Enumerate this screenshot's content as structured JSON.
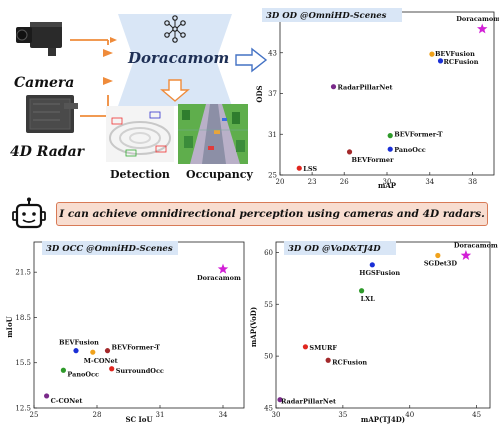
{
  "pipeline": {
    "inputs": [
      "Camera",
      "4D Radar"
    ],
    "model_name": "Doracamom",
    "outputs": [
      "Detection",
      "Occupancy"
    ]
  },
  "banner": {
    "text": "I can achieve omnidirectional perception using cameras and 4D radars."
  },
  "colors": {
    "red": "#e0261f",
    "darkred": "#a3292b",
    "green": "#2e9a2a",
    "blue": "#1a2fd6",
    "orange": "#f0a21c",
    "purple": "#7a2a8a",
    "magenta": "#d21fd6",
    "title_bg": "#d9e6f6",
    "arrow_orange": "#ef8b3a",
    "arrow_blue": "#4472c4"
  },
  "chart_data": [
    {
      "id": "omnihd_3dod",
      "type": "scatter",
      "title": "3D OD @OmniHD-Scenes",
      "xlabel": "mAP",
      "ylabel": "ODS",
      "xlim": [
        20,
        40
      ],
      "ylim": [
        25,
        49
      ],
      "xticks": [
        20,
        23,
        26,
        30,
        34,
        38
      ],
      "yticks": [
        25,
        31,
        37,
        43,
        49
      ],
      "points": [
        {
          "name": "Doracamom",
          "x": 38.9,
          "y": 46.5,
          "color": "magenta",
          "marker": "star"
        },
        {
          "name": "BEVFusion",
          "x": 34.2,
          "y": 42.8,
          "color": "orange",
          "marker": "circle"
        },
        {
          "name": "RCFusion",
          "x": 35.0,
          "y": 41.8,
          "color": "blue",
          "marker": "circle"
        },
        {
          "name": "RadarPillarNet",
          "x": 25.0,
          "y": 38.0,
          "color": "purple",
          "marker": "circle"
        },
        {
          "name": "BEVFormer-T",
          "x": 30.3,
          "y": 30.8,
          "color": "green",
          "marker": "circle"
        },
        {
          "name": "PanoOcc",
          "x": 30.3,
          "y": 28.8,
          "color": "blue",
          "marker": "circle"
        },
        {
          "name": "BEVFormer",
          "x": 26.5,
          "y": 28.4,
          "color": "darkred",
          "marker": "circle"
        },
        {
          "name": "LSS",
          "x": 21.8,
          "y": 26.0,
          "color": "red",
          "marker": "circle"
        }
      ]
    },
    {
      "id": "omnihd_occ",
      "type": "scatter",
      "title": "3D OCC @OmniHD-Scenes",
      "xlabel": "SC IoU",
      "ylabel": "mIoU",
      "xlim": [
        25,
        35
      ],
      "ylim": [
        12.5,
        23.5
      ],
      "xticks": [
        25,
        28,
        31,
        34
      ],
      "yticks": [
        12.5,
        15.5,
        18.5,
        21.5
      ],
      "points": [
        {
          "name": "Doracamom",
          "x": 34.0,
          "y": 21.7,
          "color": "magenta",
          "marker": "star"
        },
        {
          "name": "BEVFusion",
          "x": 27.0,
          "y": 16.3,
          "color": "blue",
          "marker": "circle"
        },
        {
          "name": "M-CONet",
          "x": 27.8,
          "y": 16.2,
          "color": "orange",
          "marker": "circle"
        },
        {
          "name": "BEVFormer-T",
          "x": 28.5,
          "y": 16.3,
          "color": "darkred",
          "marker": "circle"
        },
        {
          "name": "PanoOcc",
          "x": 26.4,
          "y": 15.0,
          "color": "green",
          "marker": "circle"
        },
        {
          "name": "SurroundOcc",
          "x": 28.7,
          "y": 15.1,
          "color": "red",
          "marker": "circle"
        },
        {
          "name": "C-CONet",
          "x": 25.6,
          "y": 13.3,
          "color": "purple",
          "marker": "circle"
        }
      ]
    },
    {
      "id": "vod_tj4d",
      "type": "scatter",
      "title": "3D OD @VoD&TJ4D",
      "xlabel": "mAP(TJ4D)",
      "ylabel": "mAP(VoD)",
      "xlim": [
        30,
        46
      ],
      "ylim": [
        45,
        61
      ],
      "xticks": [
        30,
        35,
        40,
        45
      ],
      "yticks": [
        45,
        50,
        55,
        60
      ],
      "points": [
        {
          "name": "Doracamom",
          "x": 44.2,
          "y": 59.7,
          "color": "magenta",
          "marker": "star"
        },
        {
          "name": "SGDet3D",
          "x": 42.1,
          "y": 59.7,
          "color": "orange",
          "marker": "circle"
        },
        {
          "name": "HGSFusion",
          "x": 37.2,
          "y": 58.8,
          "color": "blue",
          "marker": "circle"
        },
        {
          "name": "LXL",
          "x": 36.4,
          "y": 56.3,
          "color": "green",
          "marker": "circle"
        },
        {
          "name": "SMURF",
          "x": 32.2,
          "y": 50.9,
          "color": "red",
          "marker": "circle"
        },
        {
          "name": "RCFusion",
          "x": 33.9,
          "y": 49.6,
          "color": "darkred",
          "marker": "circle"
        },
        {
          "name": "RadarPillarNet",
          "x": 30.3,
          "y": 45.8,
          "color": "purple",
          "marker": "circle"
        }
      ]
    }
  ]
}
